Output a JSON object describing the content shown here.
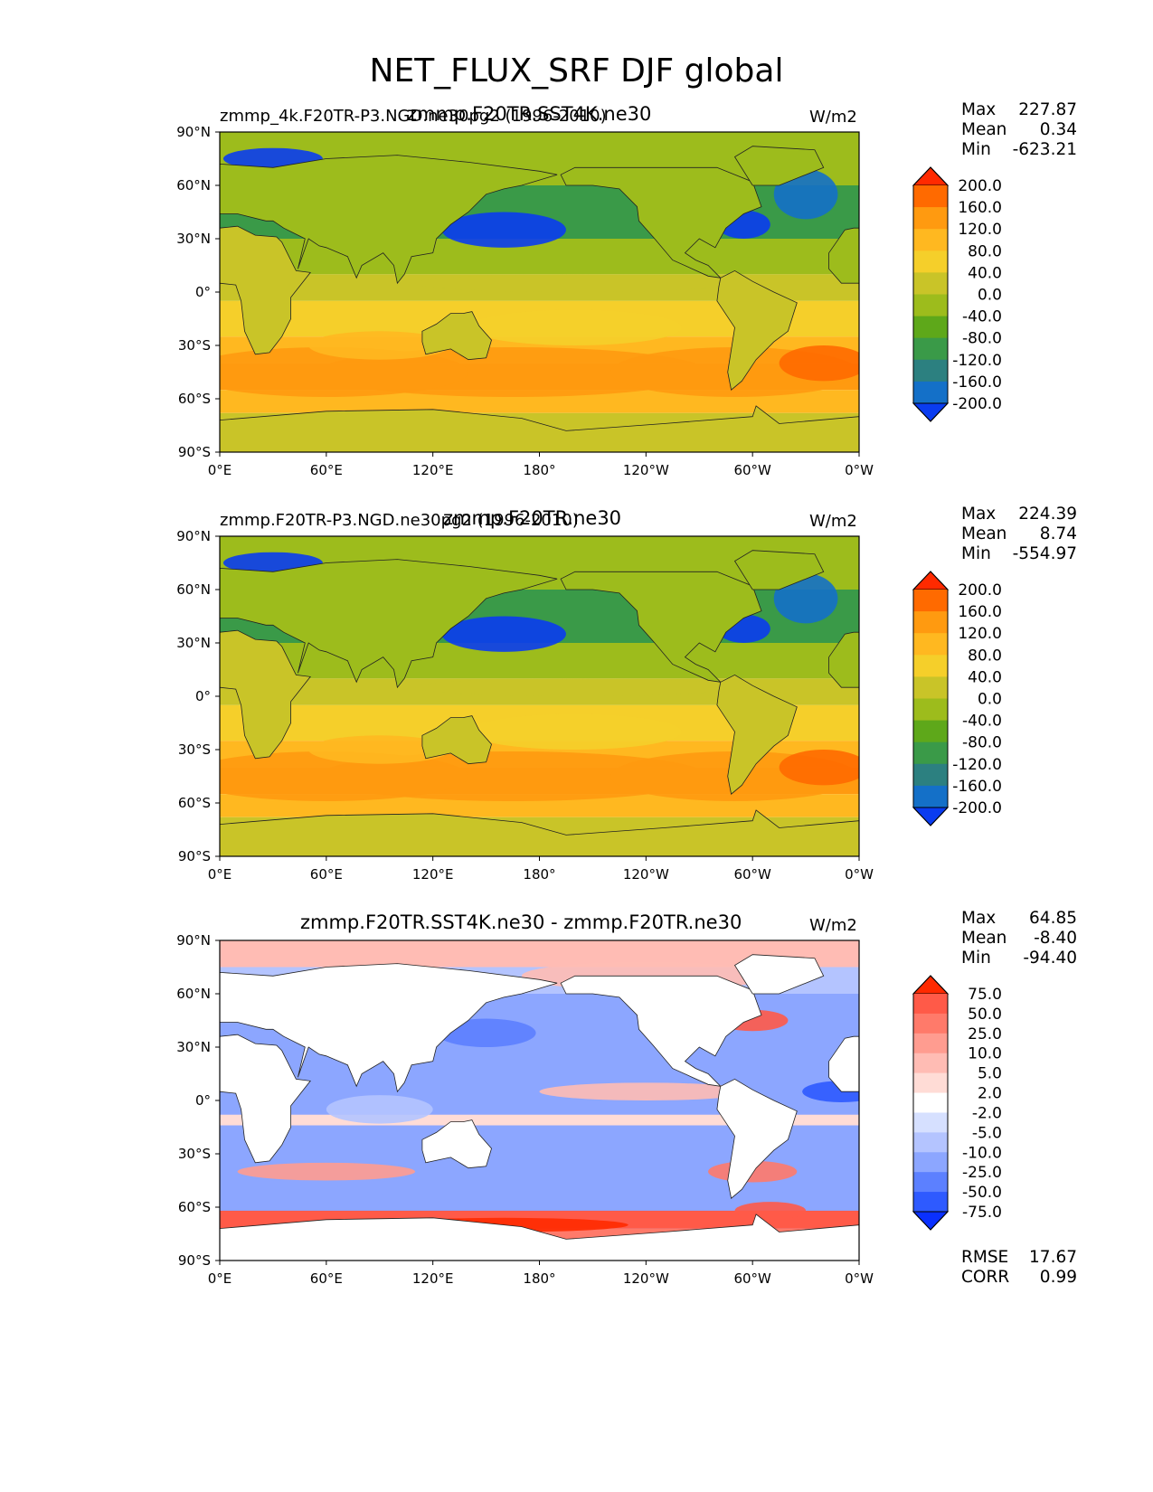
{
  "title": "NET_FLUX_SRF DJF global",
  "panels": [
    {
      "left_title": "zmmp_4k.F20TR-P3.NGD.ne30pg2 (1996-2010)",
      "center_title": "zmmp.F20TR.SST4K.ne30",
      "units": "W/m2",
      "stats": {
        "max_label": "Max",
        "max": "227.87",
        "mean_label": "Mean",
        "mean": "0.34",
        "min_label": "Min",
        "min": "-623.21"
      },
      "colorbar": {
        "levels": [
          "200.0",
          "160.0",
          "120.0",
          "80.0",
          "40.0",
          "0.0",
          "-40.0",
          "-80.0",
          "-120.0",
          "-160.0",
          "-200.0"
        ],
        "colors": [
          "#ff2a00",
          "#ff6a00",
          "#ff9a10",
          "#ffb820",
          "#f5cf2a",
          "#c9c428",
          "#9dbc1c",
          "#5ea81a",
          "#3a9a48",
          "#2c8080",
          "#1470c8",
          "#0a3cf0"
        ]
      }
    },
    {
      "left_title": "zmmp.F20TR-P3.NGD.ne30pg2 (1996-2010)",
      "center_title": "zmmp.F20TR.ne30",
      "units": "W/m2",
      "stats": {
        "max_label": "Max",
        "max": "224.39",
        "mean_label": "Mean",
        "mean": "8.74",
        "min_label": "Min",
        "min": "-554.97"
      },
      "colorbar": {
        "levels": [
          "200.0",
          "160.0",
          "120.0",
          "80.0",
          "40.0",
          "0.0",
          "-40.0",
          "-80.0",
          "-120.0",
          "-160.0",
          "-200.0"
        ],
        "colors": [
          "#ff2a00",
          "#ff6a00",
          "#ff9a10",
          "#ffb820",
          "#f5cf2a",
          "#c9c428",
          "#9dbc1c",
          "#5ea81a",
          "#3a9a48",
          "#2c8080",
          "#1470c8",
          "#0a3cf0"
        ]
      }
    },
    {
      "left_title": "",
      "center_title": "zmmp.F20TR.SST4K.ne30 - zmmp.F20TR.ne30",
      "units": "W/m2",
      "stats": {
        "max_label": "Max",
        "max": "64.85",
        "mean_label": "Mean",
        "mean": "-8.40",
        "min_label": "Min",
        "min": "-94.40"
      },
      "colorbar": {
        "levels": [
          "75.0",
          "50.0",
          "25.0",
          "10.0",
          "5.0",
          "2.0",
          "-2.0",
          "-5.0",
          "-10.0",
          "-25.0",
          "-50.0",
          "-75.0"
        ],
        "colors": [
          "#ff2a00",
          "#ff5a48",
          "#ff7a6a",
          "#ff9c90",
          "#ffbcb4",
          "#ffdcd6",
          "#ffffff",
          "#d6e0ff",
          "#b4c4ff",
          "#8ca6ff",
          "#5c80ff",
          "#2e5aff",
          "#0a30ff"
        ]
      },
      "rmse_label": "RMSE",
      "rmse": "17.67",
      "corr_label": "CORR",
      "corr": "0.99"
    }
  ],
  "chart_data": {
    "type": "heatmap",
    "title": "NET_FLUX_SRF DJF global",
    "variable": "NET_FLUX_SRF",
    "season": "DJF",
    "x_tick_labels": [
      "0°E",
      "60°E",
      "120°E",
      "180°",
      "120°W",
      "60°W",
      "0°W"
    ],
    "y_tick_labels": [
      "90°N",
      "60°N",
      "30°N",
      "0°",
      "30°S",
      "60°S",
      "90°S"
    ],
    "xlim": [
      0,
      360
    ],
    "ylim": [
      -90,
      90
    ],
    "maps": [
      {
        "name": "zmmp.F20TR.SST4K.ne30",
        "max": 227.87,
        "mean": 0.34,
        "min": -623.21
      },
      {
        "name": "zmmp.F20TR.ne30",
        "max": 224.39,
        "mean": 8.74,
        "min": -554.97
      },
      {
        "name": "zmmp.F20TR.SST4K.ne30 - zmmp.F20TR.ne30",
        "max": 64.85,
        "mean": -8.4,
        "min": -94.4,
        "rmse": 17.67,
        "corr": 0.99
      }
    ]
  }
}
